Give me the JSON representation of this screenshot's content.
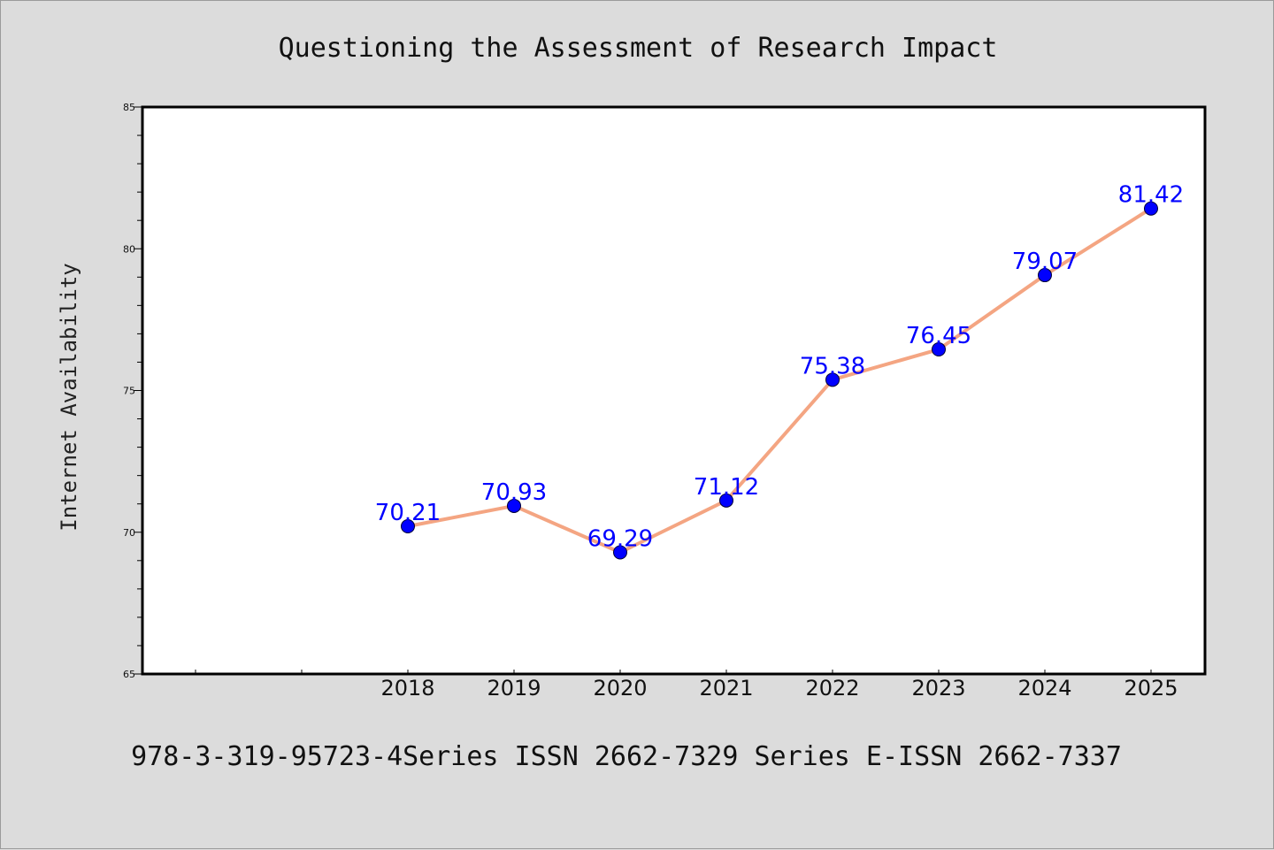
{
  "chart_data": {
    "type": "line",
    "title": "Questioning the Assessment of Research Impact",
    "xlabel": "",
    "ylabel": "Internet Availability",
    "categories": [
      "2018",
      "2019",
      "2020",
      "2021",
      "2022",
      "2023",
      "2024",
      "2025"
    ],
    "x_axis_slots": [
      "",
      "",
      "2018",
      "2019",
      "2020",
      "2021",
      "2022",
      "2023",
      "2024",
      "2025"
    ],
    "series": [
      {
        "values": [
          70.21,
          70.93,
          69.29,
          71.12,
          75.38,
          76.45,
          79.07,
          81.42
        ],
        "data_labels": [
          "70.21",
          "70.93",
          "69.29",
          "71.12",
          "75.38",
          "76.45",
          "79.07",
          "81.42"
        ],
        "line_color": "#f4a582",
        "marker_color": "#0000ff",
        "label_color": "#0000ff"
      }
    ],
    "ylim": [
      65,
      85
    ],
    "yticks": [
      "65",
      "70",
      "75",
      "80",
      "85"
    ],
    "grid": false,
    "legend": "none",
    "colors": {
      "background": "#dcdcdc",
      "plot_background": "#ffffff",
      "axis": "#000000"
    }
  },
  "footer": {
    "text": "978-3-319-95723-4Series ISSN 2662-7329 Series E-ISSN 2662-7337"
  }
}
